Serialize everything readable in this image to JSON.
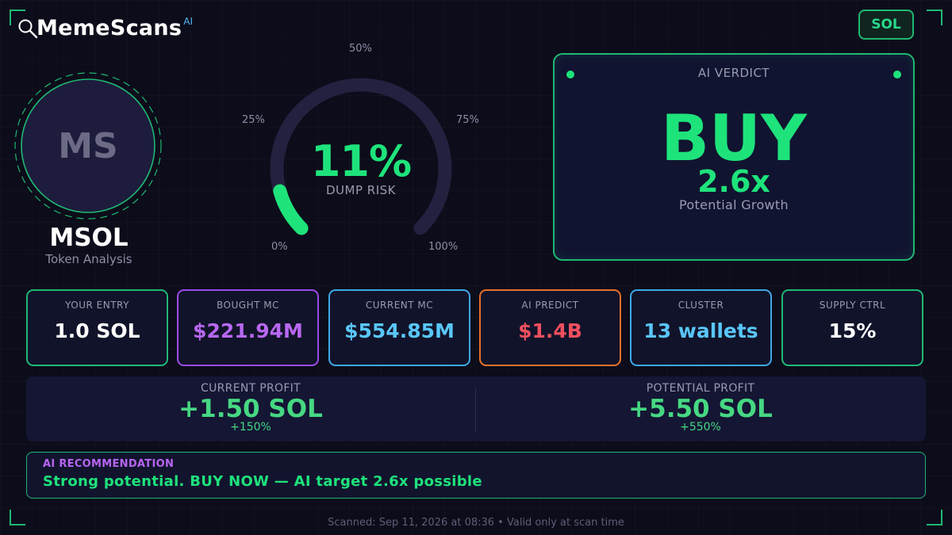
{
  "brand": {
    "name": "MemeScans",
    "superscript": "AI",
    "icon": "magnifier-icon"
  },
  "chain_badge": {
    "label": "SOL"
  },
  "token": {
    "initials": "MS",
    "symbol": "MSOL",
    "subtitle": "Token Analysis"
  },
  "gauge": {
    "value": 11,
    "value_text": "11%",
    "label": "DUMP RISK",
    "ticks": [
      "0%",
      "25%",
      "50%",
      "75%",
      "100%"
    ],
    "fill_color": "#1ee37b",
    "track_color": "#22213f"
  },
  "verdict": {
    "title": "AI VERDICT",
    "call": "BUY",
    "multiplier": "2.6x",
    "description": "Potential Growth"
  },
  "stats": [
    {
      "label": "YOUR ENTRY",
      "value": "1.0 SOL",
      "border": "#1fb873",
      "color": "#ffffff"
    },
    {
      "label": "BOUGHT MC",
      "value": "$221.94M",
      "border": "#9b4be8",
      "color": "#b768f0"
    },
    {
      "label": "CURRENT MC",
      "value": "$554.85M",
      "border": "#3ea8e8",
      "color": "#59c6f7"
    },
    {
      "label": "AI PREDICT",
      "value": "$1.4B",
      "border": "#e5702a",
      "color": "#f0505f"
    },
    {
      "label": "CLUSTER",
      "value": "13 wallets",
      "border": "#3ea8e8",
      "color": "#59c6f7"
    },
    {
      "label": "SUPPLY CTRL",
      "value": "15%",
      "border": "#1fb873",
      "color": "#ffffff"
    }
  ],
  "profit": {
    "current": {
      "label": "CURRENT PROFIT",
      "value": "+1.50 SOL",
      "percent": "+150%"
    },
    "potential": {
      "label": "POTENTIAL PROFIT",
      "value": "+5.50 SOL",
      "percent": "+550%"
    }
  },
  "recommendation": {
    "title": "AI RECOMMENDATION",
    "text": "Strong potential. BUY NOW — AI target 2.6x possible"
  },
  "footer": {
    "text": "Scanned: Sep 11, 2026 at 08:36  •  Valid only at scan time"
  }
}
